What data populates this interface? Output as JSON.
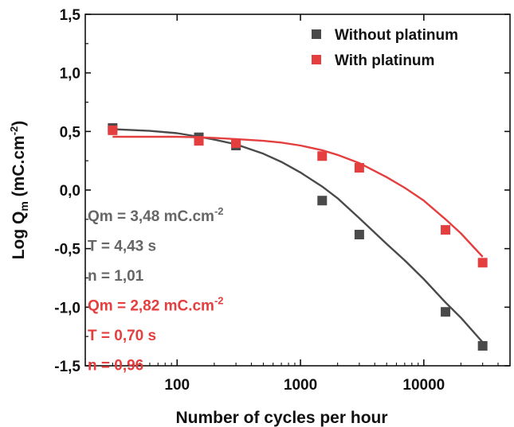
{
  "chart_data": {
    "type": "scatter",
    "title": "",
    "xlabel": "Number of cycles per hour",
    "ylabel": {
      "text": "Log Q",
      "sub": "m",
      "unit_pre": " (mC.cm",
      "unit_sup": "-2",
      "unit_post": ")"
    },
    "x_scale": "log",
    "xlim": [
      18,
      50000
    ],
    "ylim": [
      -1.5,
      1.5
    ],
    "x_ticks": [
      100,
      1000,
      10000
    ],
    "x_tick_labels": [
      "100",
      "1000",
      "10000"
    ],
    "y_ticks": [
      -1.5,
      -1.0,
      -0.5,
      0.0,
      0.5,
      1.0,
      1.5
    ],
    "y_tick_labels": [
      "-1,5",
      "-1,0",
      "-0,5",
      "0,0",
      "0,5",
      "1,0",
      "1,5"
    ],
    "grid": false,
    "legend_position": "top-right",
    "series": [
      {
        "name": "Without platinum",
        "color": "#4a4a4a",
        "x": [
          30,
          150,
          300,
          1500,
          3000,
          15000,
          30000
        ],
        "y": [
          0.53,
          0.45,
          0.38,
          -0.09,
          -0.38,
          -1.04,
          -1.33
        ],
        "fit_x": [
          30,
          60,
          100,
          150,
          200,
          300,
          500,
          700,
          1000,
          1500,
          2000,
          3000,
          5000,
          7000,
          10000,
          15000,
          20000,
          30000
        ],
        "fit_y": [
          0.52,
          0.505,
          0.485,
          0.455,
          0.43,
          0.39,
          0.31,
          0.24,
          0.15,
          0.03,
          -0.07,
          -0.24,
          -0.46,
          -0.6,
          -0.76,
          -0.96,
          -1.09,
          -1.3
        ]
      },
      {
        "name": "With platinum",
        "color": "#e53e3e",
        "x": [
          30,
          150,
          300,
          1500,
          3000,
          15000,
          30000
        ],
        "y": [
          0.51,
          0.42,
          0.4,
          0.29,
          0.19,
          -0.34,
          -0.62
        ],
        "fit_x": [
          30,
          60,
          100,
          150,
          200,
          300,
          500,
          700,
          1000,
          1500,
          2000,
          3000,
          5000,
          7000,
          10000,
          15000,
          20000,
          30000
        ],
        "fit_y": [
          0.455,
          0.455,
          0.455,
          0.45,
          0.445,
          0.435,
          0.42,
          0.405,
          0.38,
          0.34,
          0.3,
          0.23,
          0.11,
          0.02,
          -0.09,
          -0.25,
          -0.37,
          -0.57
        ]
      }
    ],
    "annotations": [
      {
        "color": "#666666",
        "parts": [
          {
            "text": "Qm = 3,48 mC.cm",
            "sup": "-2"
          },
          {
            "text": "T = 4,43 s"
          },
          {
            "text": "n = 1,01"
          }
        ]
      },
      {
        "color": "#e53e3e",
        "parts": [
          {
            "text": "Qm = 2,82 mC.cm",
            "sup": "-2"
          },
          {
            "text": "T = 0,70 s"
          },
          {
            "text": "n = 0,96"
          }
        ]
      }
    ]
  }
}
